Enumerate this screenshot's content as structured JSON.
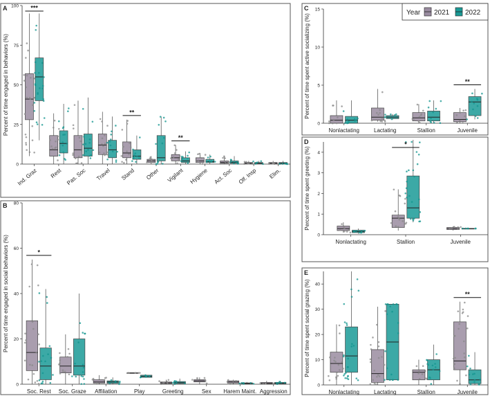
{
  "figure": {
    "legend": {
      "title": "Year",
      "entries": [
        {
          "label": "2021",
          "color": "#9a8ca0"
        },
        {
          "label": "2022",
          "color": "#1a9a96"
        }
      ]
    },
    "colors": {
      "y2021": "#9a8ca0",
      "y2022": "#1a9a96",
      "border": "#444444",
      "points2021": "#8a8a8a",
      "points2022": "#13968f"
    }
  },
  "chart_data": [
    {
      "panel": "A",
      "type": "box",
      "ylabel": "Percent of time engaged in behaviors (%)",
      "ylim": [
        0,
        100
      ],
      "yticks": [
        0,
        25,
        50,
        75,
        100
      ],
      "categories": [
        "Ind. Graz",
        "Rest",
        "Pas. Soc",
        "Travel",
        "Stand",
        "Other",
        "Vigilant",
        "Hygiene",
        "Act. Soc",
        "Olf. Insp",
        "Elim."
      ],
      "series": [
        {
          "name": "2021",
          "boxes": [
            [
              5,
              28,
              41,
              57,
              95
            ],
            [
              0,
              5,
              9,
              18,
              32
            ],
            [
              0,
              4,
              9,
              18,
              40
            ],
            [
              0,
              6,
              12,
              19,
              33
            ],
            [
              0,
              4,
              7,
              14,
              28
            ],
            [
              0,
              1,
              2,
              3,
              5
            ],
            [
              0,
              2,
              4,
              6,
              12
            ],
            [
              0,
              1,
              2,
              4,
              7
            ],
            [
              0,
              0.5,
              1,
              2,
              5
            ],
            [
              0,
              0.2,
              0.5,
              1,
              2
            ],
            [
              0,
              0.2,
              0.5,
              1,
              2
            ]
          ]
        },
        {
          "name": "2022",
          "boxes": [
            [
              15,
              40,
              55,
              67,
              95
            ],
            [
              0,
              7,
              13,
              21,
              38
            ],
            [
              0,
              5,
              10,
              19,
              42
            ],
            [
              0,
              4,
              9,
              15,
              30
            ],
            [
              0,
              3,
              5,
              9,
              18
            ],
            [
              0,
              2,
              4,
              18,
              30
            ],
            [
              0,
              1,
              2,
              4,
              8
            ],
            [
              0,
              1,
              1.5,
              3,
              6
            ],
            [
              0,
              0.5,
              1,
              2,
              5
            ],
            [
              0,
              0.2,
              0.5,
              1,
              2
            ],
            [
              0,
              0.2,
              0.5,
              1,
              2
            ]
          ]
        }
      ],
      "significance": [
        {
          "category": "Ind. Graz",
          "label": "***"
        },
        {
          "category": "Stand",
          "label": "**"
        },
        {
          "category": "Vigilant",
          "label": "**"
        }
      ]
    },
    {
      "panel": "B",
      "type": "box",
      "ylabel": "Percent of time engaged in social behaviors (%)",
      "ylim": [
        0,
        80
      ],
      "yticks": [
        0,
        20,
        40,
        60,
        80
      ],
      "categories": [
        "Soc. Rest",
        "Soc. Graze",
        "Affiliation",
        "Play",
        "Greeting",
        "Sex",
        "Harem Maint.",
        "Aggression"
      ],
      "series": [
        {
          "name": "2021",
          "boxes": [
            [
              0,
              6,
              14,
              28,
              55
            ],
            [
              0,
              5,
              8,
              12,
              22
            ],
            [
              0,
              0.5,
              1,
              2,
              4
            ],
            [
              5,
              5,
              5,
              5,
              5
            ],
            [
              0,
              0.3,
              0.6,
              1,
              2
            ],
            [
              0,
              1,
              1.5,
              2,
              3
            ],
            [
              0,
              0.5,
              1,
              1.5,
              2
            ],
            [
              0,
              0.2,
              0.4,
              0.8,
              1.5
            ]
          ]
        },
        {
          "name": "2022",
          "boxes": [
            [
              0,
              2,
              8,
              16,
              42
            ],
            [
              0,
              4,
              8,
              20,
              40
            ],
            [
              0,
              0.4,
              1,
              1.5,
              3
            ],
            [
              3,
              3,
              3.5,
              4,
              4
            ],
            [
              0,
              0.3,
              0.7,
              1.2,
              2.5
            ],
            null,
            [
              0,
              0.2,
              0.4,
              0.6,
              1
            ],
            [
              0,
              0.2,
              0.4,
              0.8,
              1.5
            ]
          ]
        }
      ],
      "significance": [
        {
          "category": "Soc. Rest",
          "label": "*"
        }
      ]
    },
    {
      "panel": "C",
      "type": "box",
      "ylabel": "Percent of time spent active socializing (%)",
      "ylim": [
        0,
        15
      ],
      "yticks": [
        0,
        5,
        10,
        15
      ],
      "categories": [
        "Nonlactating",
        "Lactating",
        "Stallion",
        "Juvenile"
      ],
      "series": [
        {
          "name": "2021",
          "boxes": [
            [
              0,
              0,
              0.4,
              1,
              3
            ],
            [
              0.2,
              0.4,
              0.8,
              2,
              4.5
            ],
            [
              0,
              0.3,
              0.7,
              1.4,
              2.5
            ],
            [
              0,
              0.2,
              0.5,
              1.4,
              2
            ]
          ]
        },
        {
          "name": "2022",
          "boxes": [
            [
              0,
              0,
              0.4,
              0.9,
              3
            ],
            [
              0.5,
              0.6,
              0.8,
              1,
              1.2
            ],
            [
              0,
              0.3,
              0.8,
              1.6,
              3
            ],
            [
              0.5,
              1,
              2.8,
              3.5,
              4.5
            ]
          ]
        }
      ],
      "significance": [
        {
          "category": "Juvenile",
          "label": "**"
        }
      ]
    },
    {
      "panel": "D",
      "type": "box",
      "ylabel": "Percent of time spent greeting (%)",
      "ylim": [
        0,
        4.5
      ],
      "yticks": [
        0,
        1,
        2,
        3,
        4
      ],
      "categories": [
        "Nonlactating",
        "Stallion",
        "Juvenile"
      ],
      "series": [
        {
          "name": "2021",
          "boxes": [
            [
              0.1,
              0.2,
              0.3,
              0.42,
              0.6
            ],
            [
              0.2,
              0.35,
              0.8,
              0.95,
              2.2
            ],
            [
              0.2,
              0.25,
              0.3,
              0.35,
              0.4
            ]
          ]
        },
        {
          "name": "2022",
          "boxes": [
            [
              0.05,
              0.1,
              0.15,
              0.22,
              0.3
            ],
            [
              0.6,
              0.8,
              1.3,
              2.85,
              4.6
            ],
            [
              0.3,
              0.3,
              0.3,
              0.3,
              0.3
            ]
          ]
        }
      ],
      "significance": [
        {
          "category": "Stallion",
          "label": "*"
        }
      ]
    },
    {
      "panel": "E",
      "type": "box",
      "ylabel": "Percent of time spent social grazing (%)",
      "ylim": [
        0,
        45
      ],
      "yticks": [
        0,
        10,
        20,
        30,
        40
      ],
      "categories": [
        "Nonlactating",
        "Lactating",
        "Stallion",
        "Juvenile"
      ],
      "series": [
        {
          "name": "2021",
          "boxes": [
            [
              0,
              5,
              8.5,
              13,
              24
            ],
            [
              0,
              1,
              4.5,
              14,
              31
            ],
            [
              0,
              2,
              5,
              6,
              10
            ],
            [
              0,
              6,
              9.5,
              25,
              33
            ]
          ]
        },
        {
          "name": "2022",
          "boxes": [
            [
              0,
              5,
              11.5,
              23,
              45
            ],
            [
              2,
              2,
              17,
              32,
              32
            ],
            [
              0,
              2,
              6,
              10,
              16
            ],
            [
              0,
              0.5,
              2,
              6,
              13
            ]
          ]
        }
      ],
      "significance": [
        {
          "category": "Juvenile",
          "label": "**"
        }
      ]
    }
  ]
}
